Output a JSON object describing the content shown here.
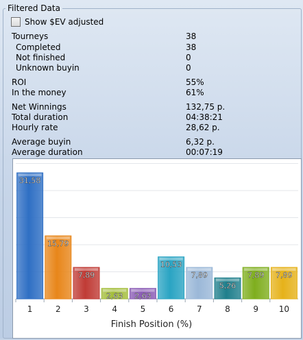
{
  "group_title": "Filtered Data",
  "checkbox": {
    "label": "Show $EV adjusted",
    "checked": false
  },
  "stats": [
    {
      "label": "Tourneys",
      "value": "38",
      "indent": false
    },
    {
      "label": "Completed",
      "value": "38",
      "indent": true
    },
    {
      "label": "Not finished",
      "value": "0",
      "indent": true
    },
    {
      "label": "Unknown buyin",
      "value": "0",
      "indent": true
    },
    {
      "label": "ROI",
      "value": "55%",
      "indent": false
    },
    {
      "label": "In the money",
      "value": "61%",
      "indent": false
    },
    {
      "label": "Net Winnings",
      "value": "132,75 p.",
      "indent": false
    },
    {
      "label": "Total duration",
      "value": "04:38:21",
      "indent": false
    },
    {
      "label": "Hourly rate",
      "value": "28,62 p.",
      "indent": false
    },
    {
      "label": "Average buyin",
      "value": "6,32 p.",
      "indent": false
    },
    {
      "label": "Average duration",
      "value": "00:07:19",
      "indent": false
    }
  ],
  "chart_data": {
    "type": "bar",
    "categories": [
      "1",
      "2",
      "3",
      "4",
      "5",
      "6",
      "7",
      "8",
      "9",
      "10"
    ],
    "values": [
      31.58,
      15.79,
      7.89,
      2.63,
      2.63,
      10.53,
      7.89,
      5.26,
      7.89,
      7.89
    ],
    "value_labels": [
      "31,58",
      "15,79",
      "7,89",
      "2,63",
      "2,63",
      "10,53",
      "7,89",
      "5,26",
      "7,89",
      "7,89"
    ],
    "colors": [
      "#2f6fc4",
      "#e8861a",
      "#c03b35",
      "#a3bd3a",
      "#8a5bb5",
      "#2aa4c3",
      "#9bb8d8",
      "#1f7f8c",
      "#7fae1e",
      "#e6b21a"
    ],
    "xlabel": "Finish Position (%)",
    "ylabel": "",
    "ylim": [
      0,
      34
    ],
    "grid": true
  }
}
